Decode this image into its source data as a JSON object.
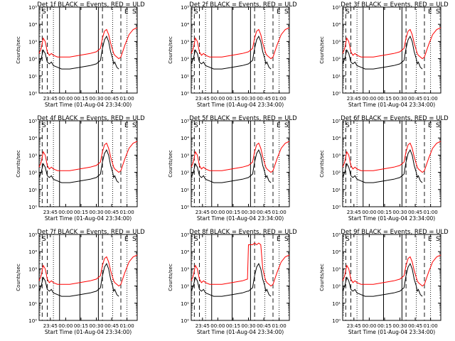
{
  "panels_common": {
    "ylabel": "Counts/sec",
    "xlabel": "Start Time (01-Aug-04 23:34:00)",
    "xtick_labels": [
      "23:45",
      "00:00",
      "00:15",
      "00:30",
      "00:45",
      "01:00"
    ],
    "ytick_labels": [
      "10⁰",
      "10¹",
      "10²",
      "10³",
      "10⁴",
      "10⁵"
    ],
    "corner_markers": [
      "S",
      "E",
      "S"
    ]
  },
  "chart_data": [
    {
      "type": "line",
      "title": "Det 1f BLACK = Events, RED = ULD",
      "x_unit": "minutes after 23:34:00",
      "xlim": [
        0,
        96
      ],
      "ylim_log10": [
        0,
        5
      ],
      "x": [
        0,
        2,
        4,
        6,
        8,
        10,
        12,
        14,
        18,
        22,
        30,
        40,
        50,
        56,
        60,
        62,
        64,
        66,
        68,
        70,
        72,
        73,
        74,
        76,
        78,
        80,
        84,
        88,
        92,
        96
      ],
      "series": [
        {
          "name": "Events",
          "color": "#000000",
          "log10_values": [
            1.7,
            2.0,
            2.5,
            2.3,
            1.8,
            1.7,
            1.8,
            1.6,
            1.5,
            1.4,
            1.4,
            1.5,
            1.6,
            1.7,
            1.9,
            2.6,
            3.1,
            3.3,
            3.0,
            2.4,
            2.0,
            1.7,
            1.8,
            1.5,
            1.4,
            null,
            null,
            null,
            null,
            null
          ]
        },
        {
          "name": "ULD",
          "color": "#ff0000",
          "log10_values": [
            2.3,
            2.6,
            3.2,
            3.0,
            2.4,
            2.2,
            2.3,
            2.2,
            2.1,
            2.1,
            2.1,
            2.2,
            2.3,
            2.4,
            2.6,
            3.2,
            3.6,
            3.7,
            3.4,
            2.9,
            2.5,
            2.3,
            2.2,
            2.1,
            2.0,
            2.1,
            2.8,
            3.4,
            3.7,
            3.8
          ]
        }
      ]
    },
    {
      "type": "line",
      "title": "Det 2f BLACK = Events, RED = ULD",
      "x_unit": "minutes after 23:34:00",
      "xlim": [
        0,
        96
      ],
      "ylim_log10": [
        0,
        5
      ],
      "x": [
        0,
        2,
        4,
        6,
        8,
        10,
        12,
        14,
        18,
        22,
        30,
        40,
        50,
        56,
        60,
        62,
        64,
        66,
        68,
        70,
        72,
        73,
        74,
        76,
        78,
        80,
        84,
        88,
        92,
        96
      ],
      "series": [
        {
          "name": "Events",
          "color": "#000000",
          "log10_values": [
            1.7,
            2.0,
            2.5,
            2.3,
            1.8,
            1.7,
            1.8,
            1.6,
            1.5,
            1.4,
            1.4,
            1.5,
            1.6,
            1.7,
            1.9,
            2.6,
            3.1,
            3.3,
            3.0,
            2.4,
            2.0,
            1.7,
            1.8,
            1.5,
            1.4,
            null,
            null,
            null,
            null,
            null
          ]
        },
        {
          "name": "ULD",
          "color": "#ff0000",
          "log10_values": [
            2.3,
            2.6,
            3.2,
            3.0,
            2.4,
            2.2,
            2.3,
            2.2,
            2.1,
            2.1,
            2.1,
            2.2,
            2.3,
            2.4,
            2.6,
            3.2,
            3.6,
            3.7,
            3.4,
            2.9,
            2.5,
            2.3,
            2.2,
            2.1,
            2.0,
            2.1,
            2.8,
            3.4,
            3.7,
            3.8
          ]
        }
      ]
    },
    {
      "type": "line",
      "title": "Det 3f BLACK = Events, RED = ULD",
      "x_unit": "minutes after 23:34:00",
      "xlim": [
        0,
        96
      ],
      "ylim_log10": [
        0,
        5
      ],
      "x": [
        0,
        2,
        4,
        6,
        8,
        10,
        12,
        14,
        18,
        22,
        30,
        40,
        50,
        56,
        60,
        62,
        64,
        66,
        68,
        70,
        72,
        73,
        74,
        76,
        78,
        80,
        84,
        88,
        92,
        96
      ],
      "series": [
        {
          "name": "Events",
          "color": "#000000",
          "log10_values": [
            1.7,
            2.0,
            2.5,
            2.3,
            1.8,
            1.7,
            1.8,
            1.6,
            1.5,
            1.4,
            1.4,
            1.5,
            1.6,
            1.7,
            1.9,
            2.6,
            3.1,
            3.3,
            3.0,
            2.4,
            2.0,
            1.7,
            1.8,
            1.5,
            1.4,
            null,
            null,
            null,
            null,
            null
          ]
        },
        {
          "name": "ULD",
          "color": "#ff0000",
          "log10_values": [
            2.3,
            2.6,
            3.2,
            3.0,
            2.4,
            2.2,
            2.3,
            2.2,
            2.1,
            2.1,
            2.1,
            2.2,
            2.3,
            2.4,
            2.6,
            3.2,
            3.6,
            3.7,
            3.4,
            2.9,
            2.5,
            2.3,
            2.2,
            2.1,
            2.0,
            2.1,
            2.8,
            3.4,
            3.7,
            3.8
          ]
        }
      ]
    },
    {
      "type": "line",
      "title": "Det 4f BLACK = Events, RED = ULD",
      "x_unit": "minutes after 23:34:00",
      "xlim": [
        0,
        96
      ],
      "ylim_log10": [
        0,
        5
      ],
      "x": [
        0,
        2,
        4,
        6,
        8,
        10,
        12,
        14,
        18,
        22,
        30,
        40,
        50,
        56,
        60,
        62,
        64,
        66,
        68,
        70,
        72,
        73,
        74,
        76,
        78,
        80,
        84,
        88,
        92,
        96
      ],
      "series": [
        {
          "name": "Events",
          "color": "#000000",
          "log10_values": [
            1.7,
            2.0,
            2.5,
            2.3,
            1.8,
            1.7,
            1.8,
            1.6,
            1.5,
            1.4,
            1.4,
            1.5,
            1.6,
            1.7,
            1.9,
            2.6,
            3.1,
            3.3,
            3.0,
            2.4,
            2.0,
            1.7,
            1.8,
            1.5,
            1.4,
            null,
            null,
            null,
            null,
            null
          ]
        },
        {
          "name": "ULD",
          "color": "#ff0000",
          "log10_values": [
            2.3,
            2.6,
            3.2,
            3.0,
            2.4,
            2.2,
            2.3,
            2.2,
            2.1,
            2.1,
            2.1,
            2.2,
            2.3,
            2.4,
            2.6,
            3.2,
            3.6,
            3.7,
            3.4,
            2.9,
            2.5,
            2.3,
            2.2,
            2.1,
            2.0,
            2.1,
            2.8,
            3.4,
            3.7,
            3.8
          ]
        }
      ]
    },
    {
      "type": "line",
      "title": "Det 5f BLACK = Events, RED = ULD",
      "x_unit": "minutes after 23:34:00",
      "xlim": [
        0,
        96
      ],
      "ylim_log10": [
        0,
        5
      ],
      "x": [
        0,
        2,
        4,
        6,
        8,
        10,
        12,
        14,
        18,
        22,
        30,
        40,
        50,
        56,
        60,
        62,
        64,
        66,
        68,
        70,
        72,
        73,
        74,
        76,
        78,
        80,
        84,
        88,
        92,
        96
      ],
      "series": [
        {
          "name": "Events",
          "color": "#000000",
          "log10_values": [
            1.7,
            2.0,
            2.5,
            2.3,
            1.8,
            1.7,
            1.8,
            1.6,
            1.5,
            1.4,
            1.4,
            1.5,
            1.6,
            1.7,
            1.9,
            2.6,
            3.1,
            3.3,
            3.0,
            2.4,
            2.0,
            1.7,
            1.8,
            1.5,
            1.4,
            null,
            null,
            null,
            null,
            null
          ]
        },
        {
          "name": "ULD",
          "color": "#ff0000",
          "log10_values": [
            2.3,
            2.6,
            3.2,
            3.0,
            2.4,
            2.2,
            2.3,
            2.2,
            2.1,
            2.1,
            2.1,
            2.2,
            2.3,
            2.4,
            2.6,
            3.2,
            3.6,
            3.7,
            3.4,
            2.9,
            2.5,
            2.3,
            2.2,
            2.1,
            2.0,
            2.1,
            2.8,
            3.4,
            3.7,
            3.8
          ]
        }
      ]
    },
    {
      "type": "line",
      "title": "Det 6f BLACK = Events, RED = ULD",
      "x_unit": "minutes after 23:34:00",
      "xlim": [
        0,
        96
      ],
      "ylim_log10": [
        0,
        5
      ],
      "x": [
        0,
        2,
        4,
        6,
        8,
        10,
        12,
        14,
        18,
        22,
        30,
        40,
        50,
        56,
        60,
        62,
        64,
        66,
        68,
        70,
        72,
        73,
        74,
        76,
        78,
        80,
        84,
        88,
        92,
        96
      ],
      "series": [
        {
          "name": "Events",
          "color": "#000000",
          "log10_values": [
            1.7,
            2.0,
            2.5,
            2.3,
            1.8,
            1.7,
            1.8,
            1.6,
            1.5,
            1.4,
            1.4,
            1.5,
            1.6,
            1.7,
            1.9,
            2.6,
            3.1,
            3.3,
            3.0,
            2.4,
            2.0,
            1.7,
            1.8,
            1.5,
            1.4,
            null,
            null,
            null,
            null,
            null
          ]
        },
        {
          "name": "ULD",
          "color": "#ff0000",
          "log10_values": [
            2.3,
            2.6,
            3.2,
            3.0,
            2.4,
            2.2,
            2.3,
            2.2,
            2.1,
            2.1,
            2.1,
            2.2,
            2.3,
            2.4,
            2.6,
            3.2,
            3.6,
            3.7,
            3.4,
            2.9,
            2.5,
            2.3,
            2.2,
            2.1,
            2.0,
            2.1,
            2.8,
            3.4,
            3.7,
            3.8
          ]
        }
      ]
    },
    {
      "type": "line",
      "title": "Det 7f BLACK = Events, RED = ULD",
      "x_unit": "minutes after 23:34:00",
      "xlim": [
        0,
        96
      ],
      "ylim_log10": [
        0,
        5
      ],
      "x": [
        0,
        2,
        4,
        6,
        8,
        10,
        12,
        14,
        18,
        22,
        30,
        40,
        50,
        56,
        60,
        62,
        64,
        66,
        68,
        70,
        72,
        73,
        74,
        76,
        78,
        80,
        84,
        88,
        92,
        96
      ],
      "series": [
        {
          "name": "Events",
          "color": "#000000",
          "log10_values": [
            1.7,
            2.0,
            2.5,
            2.3,
            1.8,
            1.7,
            1.8,
            1.6,
            1.5,
            1.4,
            1.4,
            1.5,
            1.6,
            1.7,
            1.9,
            2.6,
            3.1,
            3.3,
            3.0,
            2.4,
            2.0,
            1.7,
            1.8,
            1.5,
            1.4,
            null,
            null,
            null,
            null,
            null
          ]
        },
        {
          "name": "ULD",
          "color": "#ff0000",
          "log10_values": [
            2.3,
            2.6,
            3.2,
            3.0,
            2.4,
            2.2,
            2.3,
            2.2,
            2.1,
            2.1,
            2.1,
            2.2,
            2.3,
            2.4,
            2.6,
            3.2,
            3.6,
            3.7,
            3.4,
            2.9,
            2.5,
            2.3,
            2.2,
            2.1,
            2.0,
            2.1,
            2.8,
            3.4,
            3.7,
            3.8
          ]
        }
      ]
    },
    {
      "type": "line",
      "title": "Det 8f BLACK = Events, RED = ULD",
      "x_unit": "minutes after 23:34:00",
      "xlim": [
        0,
        96
      ],
      "ylim_log10": [
        0,
        5
      ],
      "x": [
        0,
        2,
        4,
        6,
        8,
        10,
        12,
        14,
        18,
        22,
        30,
        40,
        50,
        55,
        56,
        60,
        62,
        64,
        66,
        68,
        70,
        72,
        73,
        74,
        76,
        78,
        80,
        84,
        88,
        92,
        96
      ],
      "series": [
        {
          "name": "Events",
          "color": "#000000",
          "log10_values": [
            1.7,
            2.0,
            2.5,
            2.3,
            1.8,
            1.7,
            1.8,
            1.6,
            1.5,
            1.4,
            1.4,
            1.5,
            1.6,
            1.7,
            1.7,
            1.9,
            2.6,
            3.1,
            3.3,
            3.0,
            2.4,
            2.0,
            1.7,
            1.8,
            1.5,
            1.4,
            null,
            null,
            null,
            null,
            null
          ]
        },
        {
          "name": "ULD",
          "color": "#ff0000",
          "log10_values": [
            2.3,
            2.6,
            3.2,
            3.0,
            2.4,
            2.2,
            2.3,
            2.2,
            2.1,
            2.1,
            2.1,
            2.2,
            2.3,
            2.4,
            4.4,
            4.4,
            4.5,
            4.4,
            4.5,
            4.4,
            3.0,
            2.5,
            2.3,
            2.2,
            2.1,
            2.0,
            2.1,
            2.8,
            3.4,
            3.7,
            3.8
          ]
        }
      ]
    },
    {
      "type": "line",
      "title": "Det 9f BLACK = Events, RED = ULD",
      "x_unit": "minutes after 23:34:00",
      "xlim": [
        0,
        96
      ],
      "ylim_log10": [
        0,
        5
      ],
      "x": [
        0,
        2,
        4,
        6,
        8,
        10,
        12,
        14,
        18,
        22,
        30,
        40,
        50,
        56,
        60,
        62,
        64,
        66,
        68,
        70,
        72,
        73,
        74,
        76,
        78,
        80,
        84,
        88,
        92,
        96
      ],
      "series": [
        {
          "name": "Events",
          "color": "#000000",
          "log10_values": [
            1.7,
            2.0,
            2.5,
            2.3,
            1.8,
            1.7,
            1.8,
            1.6,
            1.5,
            1.4,
            1.4,
            1.5,
            1.6,
            1.7,
            1.9,
            2.6,
            3.1,
            3.3,
            3.0,
            2.4,
            2.0,
            1.7,
            1.8,
            1.5,
            1.4,
            null,
            null,
            null,
            null,
            null
          ]
        },
        {
          "name": "ULD",
          "color": "#ff0000",
          "log10_values": [
            2.3,
            2.6,
            3.2,
            3.0,
            2.4,
            2.2,
            2.3,
            2.2,
            2.1,
            2.1,
            2.1,
            2.2,
            2.3,
            2.4,
            2.6,
            3.2,
            3.6,
            3.7,
            3.4,
            2.9,
            2.5,
            2.3,
            2.2,
            2.1,
            2.0,
            2.1,
            2.8,
            3.4,
            3.7,
            3.8
          ]
        }
      ]
    }
  ],
  "vertical_markers": {
    "dashed_at": [
      3,
      8,
      62,
      80
    ],
    "solid_at": [
      20,
      40,
      58
    ],
    "dotted_at": [
      14,
      72,
      86
    ]
  }
}
